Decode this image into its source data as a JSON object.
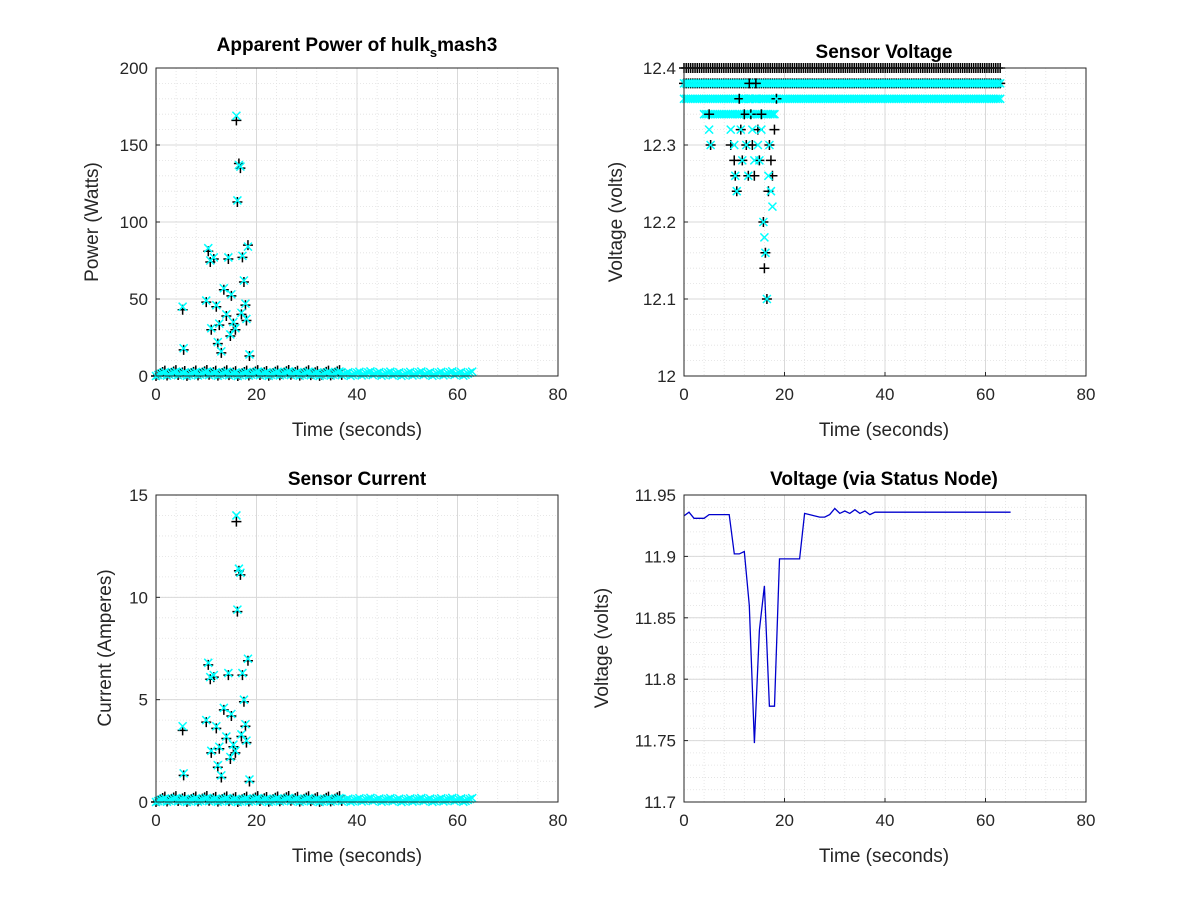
{
  "colors": {
    "marker_plus": "#000000",
    "marker_x": "#00ffff",
    "line": "#0000cd",
    "grid_major": "#d9d9d9",
    "grid_minor": "#e0e0e0",
    "axes": "#262626"
  },
  "chart_data": [
    {
      "type": "scatter",
      "title_main": "Apparent Power of hulk",
      "title_sub": "s",
      "title_tail": "mash3",
      "xlabel": "Time (seconds)",
      "ylabel": "Power (Watts)",
      "xlim": [
        0,
        80
      ],
      "ylim": [
        0,
        200
      ],
      "xticks": [
        "0",
        "20",
        "40",
        "60",
        "80"
      ],
      "yticks": [
        "0",
        "50",
        "100",
        "150",
        "200"
      ],
      "grid": true,
      "minor_grid": true,
      "series": [
        {
          "marker": "+",
          "points": [
            [
              5.3,
              43
            ],
            [
              5.5,
              17
            ],
            [
              10,
              48
            ],
            [
              10.4,
              81
            ],
            [
              10.8,
              74
            ],
            [
              11,
              30
            ],
            [
              11.5,
              76
            ],
            [
              12,
              45
            ],
            [
              12.3,
              21
            ],
            [
              12.6,
              33
            ],
            [
              13,
              15
            ],
            [
              13.5,
              56
            ],
            [
              14,
              39
            ],
            [
              14.4,
              76
            ],
            [
              14.8,
              26
            ],
            [
              15,
              52
            ],
            [
              15.4,
              34
            ],
            [
              15.8,
              30
            ],
            [
              16,
              166
            ],
            [
              16.2,
              113
            ],
            [
              16.5,
              138
            ],
            [
              16.8,
              135
            ],
            [
              17,
              40
            ],
            [
              17.2,
              77
            ],
            [
              17.5,
              61
            ],
            [
              17.8,
              46
            ],
            [
              18,
              36
            ],
            [
              18.3,
              85
            ],
            [
              18.6,
              13
            ]
          ]
        },
        {
          "marker": "x",
          "points": [
            [
              5.3,
              45
            ],
            [
              5.5,
              18
            ],
            [
              10,
              49
            ],
            [
              10.4,
              83
            ],
            [
              10.8,
              75
            ],
            [
              11,
              31
            ],
            [
              11.5,
              77
            ],
            [
              12,
              46
            ],
            [
              12.3,
              22
            ],
            [
              12.6,
              34
            ],
            [
              13,
              16
            ],
            [
              13.5,
              57
            ],
            [
              14,
              40
            ],
            [
              14.4,
              77
            ],
            [
              14.8,
              27
            ],
            [
              15,
              53
            ],
            [
              15.4,
              35
            ],
            [
              15.8,
              31
            ],
            [
              16,
              169
            ],
            [
              16.2,
              114
            ],
            [
              16.5,
              137
            ],
            [
              16.8,
              136
            ],
            [
              17,
              41
            ],
            [
              17.2,
              78
            ],
            [
              17.5,
              62
            ],
            [
              17.8,
              47
            ],
            [
              18,
              37
            ],
            [
              18.3,
              84
            ],
            [
              18.6,
              14
            ]
          ]
        }
      ],
      "baseline_bands": [
        {
          "marker": "+",
          "x_from": 0,
          "x_to": 37,
          "y_from": 0,
          "y_to": 4
        },
        {
          "marker": "x",
          "x_from": 0,
          "x_to": 63,
          "y_from": 0,
          "y_to": 3
        }
      ]
    },
    {
      "type": "scatter",
      "title": "Sensor Voltage",
      "xlabel": "Time (seconds)",
      "ylabel": "Voltage (volts)",
      "xlim": [
        0,
        80
      ],
      "ylim": [
        12,
        12.4
      ],
      "xticks": [
        "0",
        "20",
        "40",
        "60",
        "80"
      ],
      "yticks": [
        "12",
        "12.1",
        "12.2",
        "12.3",
        "12.4"
      ],
      "grid": true,
      "minor_grid": true,
      "series": [
        {
          "marker": "+",
          "points": [
            [
              5,
              12.34
            ],
            [
              5.3,
              12.3
            ],
            [
              9.3,
              12.3
            ],
            [
              10,
              12.28
            ],
            [
              10.2,
              12.26
            ],
            [
              10.5,
              12.24
            ],
            [
              11,
              12.36
            ],
            [
              11.3,
              12.32
            ],
            [
              11.6,
              12.28
            ],
            [
              12,
              12.34
            ],
            [
              12.4,
              12.3
            ],
            [
              12.8,
              12.26
            ],
            [
              13,
              12.38
            ],
            [
              13.3,
              12.34
            ],
            [
              13.6,
              12.3
            ],
            [
              14,
              12.26
            ],
            [
              14.3,
              12.38
            ],
            [
              14.7,
              12.32
            ],
            [
              15,
              12.28
            ],
            [
              15.4,
              12.34
            ],
            [
              15.8,
              12.2
            ],
            [
              16,
              12.14
            ],
            [
              16.2,
              12.16
            ],
            [
              16.5,
              12.1
            ],
            [
              16.8,
              12.24
            ],
            [
              17,
              12.3
            ],
            [
              17.3,
              12.28
            ],
            [
              17.6,
              12.26
            ],
            [
              18,
              12.32
            ],
            [
              18.4,
              12.36
            ]
          ]
        },
        {
          "marker": "x",
          "points": [
            [
              5,
              12.32
            ],
            [
              5.3,
              12.3
            ],
            [
              9.3,
              12.32
            ],
            [
              10,
              12.3
            ],
            [
              10.2,
              12.26
            ],
            [
              10.5,
              12.24
            ],
            [
              11,
              12.34
            ],
            [
              11.3,
              12.32
            ],
            [
              11.6,
              12.28
            ],
            [
              12,
              12.36
            ],
            [
              12.4,
              12.3
            ],
            [
              12.8,
              12.26
            ],
            [
              13,
              12.36
            ],
            [
              13.3,
              12.34
            ],
            [
              13.6,
              12.32
            ],
            [
              14,
              12.28
            ],
            [
              14.3,
              12.36
            ],
            [
              14.7,
              12.3
            ],
            [
              15,
              12.28
            ],
            [
              15.4,
              12.32
            ],
            [
              15.8,
              12.2
            ],
            [
              16,
              12.18
            ],
            [
              16.2,
              12.16
            ],
            [
              16.5,
              12.1
            ],
            [
              16.8,
              12.26
            ],
            [
              17,
              12.3
            ],
            [
              17.3,
              12.24
            ],
            [
              17.6,
              12.22
            ],
            [
              18,
              12.34
            ],
            [
              18.4,
              12.36
            ]
          ]
        }
      ],
      "baseline_bands": [
        {
          "marker": "+",
          "x_from": 0,
          "x_to": 63,
          "y_from": 12.4,
          "y_to": 12.4
        },
        {
          "marker": "+",
          "x_from": 0,
          "x_to": 63,
          "y_from": 12.38,
          "y_to": 12.38
        },
        {
          "marker": "x",
          "x_from": 0,
          "x_to": 63,
          "y_from": 12.38,
          "y_to": 12.38
        },
        {
          "marker": "x",
          "x_from": 0,
          "x_to": 63,
          "y_from": 12.36,
          "y_to": 12.36
        },
        {
          "marker": "x",
          "x_from": 4,
          "x_to": 18,
          "y_from": 12.34,
          "y_to": 12.34
        }
      ]
    },
    {
      "type": "scatter",
      "title": "Sensor Current",
      "xlabel": "Time (seconds)",
      "ylabel": "Current (Amperes)",
      "xlim": [
        0,
        80
      ],
      "ylim": [
        0,
        15
      ],
      "xticks": [
        "0",
        "20",
        "40",
        "60",
        "80"
      ],
      "yticks": [
        "0",
        "5",
        "10",
        "15"
      ],
      "grid": true,
      "minor_grid": true,
      "series": [
        {
          "marker": "+",
          "points": [
            [
              5.3,
              3.5
            ],
            [
              5.5,
              1.3
            ],
            [
              10,
              3.9
            ],
            [
              10.4,
              6.7
            ],
            [
              10.8,
              6.0
            ],
            [
              11,
              2.4
            ],
            [
              11.5,
              6.1
            ],
            [
              12,
              3.6
            ],
            [
              12.3,
              1.7
            ],
            [
              12.6,
              2.6
            ],
            [
              13,
              1.2
            ],
            [
              13.5,
              4.5
            ],
            [
              14,
              3.1
            ],
            [
              14.4,
              6.2
            ],
            [
              14.8,
              2.1
            ],
            [
              15,
              4.2
            ],
            [
              15.4,
              2.7
            ],
            [
              15.8,
              2.4
            ],
            [
              16,
              13.7
            ],
            [
              16.2,
              9.3
            ],
            [
              16.5,
              11.3
            ],
            [
              16.8,
              11.1
            ],
            [
              17,
              3.2
            ],
            [
              17.2,
              6.2
            ],
            [
              17.5,
              4.9
            ],
            [
              17.8,
              3.7
            ],
            [
              18,
              2.9
            ],
            [
              18.3,
              6.9
            ],
            [
              18.6,
              1.0
            ]
          ]
        },
        {
          "marker": "x",
          "points": [
            [
              5.3,
              3.7
            ],
            [
              5.5,
              1.4
            ],
            [
              10,
              4.0
            ],
            [
              10.4,
              6.8
            ],
            [
              10.8,
              6.1
            ],
            [
              11,
              2.5
            ],
            [
              11.5,
              6.2
            ],
            [
              12,
              3.7
            ],
            [
              12.3,
              1.8
            ],
            [
              12.6,
              2.7
            ],
            [
              13,
              1.3
            ],
            [
              13.5,
              4.6
            ],
            [
              14,
              3.2
            ],
            [
              14.4,
              6.3
            ],
            [
              14.8,
              2.2
            ],
            [
              15,
              4.3
            ],
            [
              15.4,
              2.8
            ],
            [
              15.8,
              2.5
            ],
            [
              16,
              14.0
            ],
            [
              16.2,
              9.4
            ],
            [
              16.5,
              11.4
            ],
            [
              16.8,
              11.2
            ],
            [
              17,
              3.3
            ],
            [
              17.2,
              6.3
            ],
            [
              17.5,
              5.0
            ],
            [
              17.8,
              3.8
            ],
            [
              18,
              3.0
            ],
            [
              18.3,
              7.0
            ],
            [
              18.6,
              1.1
            ]
          ]
        }
      ],
      "baseline_bands": [
        {
          "marker": "+",
          "x_from": 0,
          "x_to": 37,
          "y_from": 0,
          "y_to": 0.3
        },
        {
          "marker": "x",
          "x_from": 0,
          "x_to": 63,
          "y_from": 0,
          "y_to": 0.2
        }
      ]
    },
    {
      "type": "line",
      "title": "Voltage (via Status Node)",
      "xlabel": "Time (seconds)",
      "ylabel": "Voltage (volts)",
      "xlim": [
        0,
        80
      ],
      "ylim": [
        11.7,
        11.95
      ],
      "xticks": [
        "0",
        "20",
        "40",
        "60",
        "80"
      ],
      "yticks": [
        "11.7",
        "11.75",
        "11.8",
        "11.85",
        "11.9",
        "11.95"
      ],
      "grid": true,
      "minor_grid": true,
      "series": [
        {
          "x": [
            0,
            1,
            2,
            3,
            4,
            5,
            6,
            7,
            8,
            9,
            10,
            11,
            12,
            13,
            14,
            15,
            16,
            17,
            18,
            19,
            20,
            21,
            22,
            23,
            24,
            25,
            26,
            27,
            28,
            29,
            30,
            31,
            32,
            33,
            34,
            35,
            36,
            37,
            38,
            39,
            40,
            45,
            50,
            55,
            60,
            65
          ],
          "values": [
            11.933,
            11.936,
            11.931,
            11.931,
            11.931,
            11.934,
            11.934,
            11.934,
            11.934,
            11.934,
            11.902,
            11.902,
            11.904,
            11.86,
            11.748,
            11.84,
            11.876,
            11.778,
            11.778,
            11.898,
            11.898,
            11.898,
            11.898,
            11.898,
            11.935,
            11.934,
            11.933,
            11.932,
            11.932,
            11.934,
            11.939,
            11.935,
            11.937,
            11.935,
            11.938,
            11.935,
            11.937,
            11.934,
            11.936,
            11.936,
            11.936,
            11.936,
            11.936,
            11.936,
            11.936,
            11.936
          ]
        }
      ]
    }
  ]
}
